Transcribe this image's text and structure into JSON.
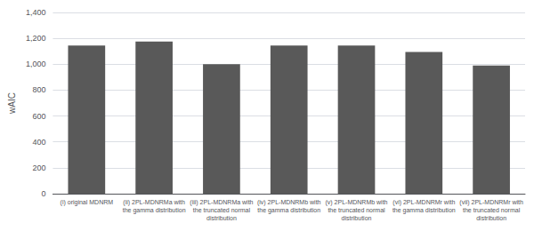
{
  "chart_data": {
    "type": "bar",
    "categories": [
      "(i) original MDNRM",
      "(ii) 2PL-MDNRMa with\nthe gamma distribution",
      "(iii) 2PL-MDNRMa with\nthe truncated normal\ndistribution",
      "(iv) 2PL-MDNRMb with\nthe gamma distribution",
      "(v) 2PL-MDNRMb with\nthe truncated normal\ndistribution",
      "(vi) 2PL-MDNRMr with\nthe gamma distribution",
      "(vii) 2PL-MDNRMr with\nthe truncated normal\ndistribution"
    ],
    "values": [
      1145,
      1175,
      1000,
      1145,
      1145,
      1095,
      990
    ],
    "color": "#595959",
    "ylabel": "wAIC",
    "ylim": [
      0,
      1400
    ],
    "yticks": [
      0,
      200,
      400,
      600,
      800,
      1000,
      1200,
      1400
    ],
    "grid": true
  }
}
